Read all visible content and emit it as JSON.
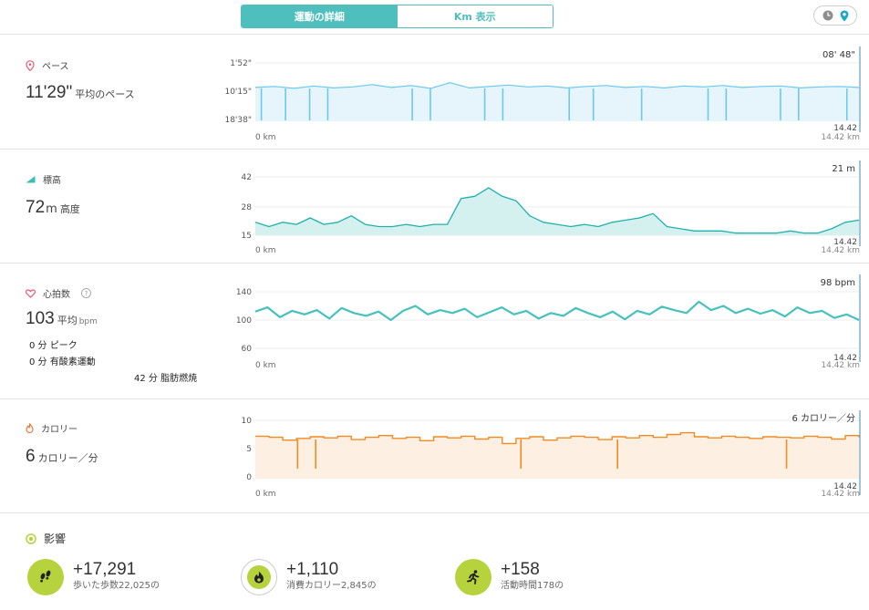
{
  "tabs": {
    "details": "運動の詳細",
    "km": "Km 表示"
  },
  "colors": {
    "accent": "#4fbfbd",
    "pace": "#6cc8f0",
    "elev": "#1fb2ad",
    "hr": "#46c1bd",
    "cal": "#f08a24",
    "impact": "#b6d23c"
  },
  "pace": {
    "label": "ペース",
    "value": "11'29\"",
    "unit": "平均のペース",
    "ticks": [
      "1'52\"",
      "10'15\"",
      "18'38\""
    ],
    "current": "08' 48\"",
    "marker": "14.42",
    "x_start": "0 km",
    "x_end": "14.42 km"
  },
  "elevation": {
    "label": "標高",
    "value": "72",
    "unit_m": "m",
    "unit": "高度",
    "ticks": [
      "42",
      "28",
      "15"
    ],
    "current": "21 m",
    "marker": "14.42",
    "x_start": "0 km",
    "x_end": "14.42 km"
  },
  "heart": {
    "label": "心拍数",
    "help": "?",
    "value": "103",
    "unit": "平均",
    "unit2": "bpm",
    "peak": "0 分 ピーク",
    "cardio": "0 分 有酸素運動",
    "fatburn": "42 分 脂肪燃焼",
    "ticks": [
      "140",
      "100",
      "60"
    ],
    "current": "98 bpm",
    "marker": "14.42",
    "x_start": "0 km",
    "x_end": "14.42 km"
  },
  "calories": {
    "label": "カロリー",
    "value": "6",
    "unit": "カロリー／分",
    "ticks": [
      "10",
      "5",
      "0"
    ],
    "current": "6 カロリー／分",
    "marker": "14.42",
    "x_start": "0 km",
    "x_end": "14.42 km"
  },
  "impact": {
    "title": "影響",
    "items": [
      {
        "value": "+17,291",
        "sub": "歩いた歩数22,025の",
        "icon": "footsteps-icon"
      },
      {
        "value": "+1,110",
        "sub": "消費カロリー2,845の",
        "icon": "flame-icon"
      },
      {
        "value": "+158",
        "sub": "活動時間178の",
        "icon": "runner-icon"
      }
    ]
  },
  "chart_data": [
    {
      "type": "line",
      "title": "ペース",
      "ylabel": "",
      "yticks": [
        "1'52\"",
        "10'15\"",
        "18'38\""
      ],
      "x_range_km": [
        0,
        14.42
      ],
      "series": [
        {
          "name": "ペース",
          "values": [
            10.2,
            10.0,
            10.4,
            9.9,
            10.3,
            10.1,
            9.6,
            10.2,
            9.8,
            10.4,
            9.2,
            10.3,
            10.0,
            9.7,
            10.1,
            9.9,
            10.3,
            10.0,
            9.8,
            10.2,
            10.0,
            10.3,
            9.9,
            10.1,
            9.8,
            10.2,
            10.0,
            9.9,
            10.3,
            10.1,
            10.0,
            10.2
          ]
        }
      ]
    },
    {
      "type": "area",
      "title": "標高",
      "ylabel": "",
      "ylim": [
        15,
        42
      ],
      "x_range_km": [
        0,
        14.42
      ],
      "series": [
        {
          "name": "標高",
          "values": [
            21,
            19,
            21,
            20,
            23,
            20,
            21,
            24,
            20,
            19,
            19,
            20,
            19,
            20,
            20,
            32,
            33,
            37,
            33,
            31,
            24,
            21,
            20,
            19,
            20,
            19,
            21,
            22,
            23,
            25,
            19,
            18,
            17,
            17,
            17,
            16,
            16,
            16,
            16,
            17,
            16,
            16,
            18,
            21,
            22
          ]
        }
      ]
    },
    {
      "type": "line",
      "title": "心拍数",
      "ylabel": "",
      "ylim": [
        60,
        140
      ],
      "x_range_km": [
        0,
        14.42
      ],
      "series": [
        {
          "name": "心拍数",
          "values": [
            112,
            118,
            104,
            113,
            108,
            114,
            102,
            117,
            110,
            106,
            112,
            100,
            113,
            120,
            108,
            114,
            110,
            116,
            104,
            111,
            118,
            108,
            113,
            102,
            110,
            106,
            117,
            110,
            104,
            112,
            101,
            113,
            108,
            119,
            114,
            110,
            126,
            114,
            120,
            110,
            116,
            109,
            114,
            105,
            118,
            110,
            113,
            103,
            108,
            100
          ]
        }
      ]
    },
    {
      "type": "line",
      "title": "カロリー",
      "ylabel": "",
      "ylim": [
        0,
        10
      ],
      "x_range_km": [
        0,
        14.42
      ],
      "series": [
        {
          "name": "カロリー",
          "values": [
            7.2,
            7.0,
            6.5,
            6.8,
            7.1,
            6.9,
            7.2,
            6.6,
            7.0,
            7.3,
            6.8,
            7.0,
            6.4,
            7.1,
            6.9,
            7.2,
            6.7,
            7.0,
            5.9,
            6.8,
            7.1,
            6.5,
            6.9,
            7.2,
            7.0,
            6.6,
            7.1,
            6.9,
            7.3,
            7.0,
            7.5,
            7.8,
            7.1,
            6.9,
            7.2,
            7.0,
            6.8,
            7.1,
            7.0,
            6.9,
            7.2,
            7.0,
            6.7,
            7.3,
            7.0
          ]
        }
      ]
    }
  ]
}
